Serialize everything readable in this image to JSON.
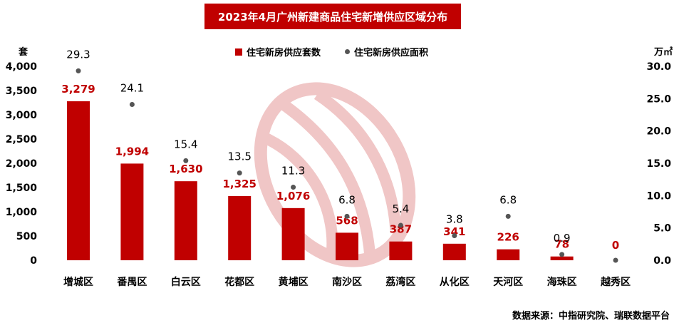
{
  "title": "2023年4月广州新建商品住宅新增供应区域分布",
  "left_unit": "套",
  "right_unit": "万㎡",
  "source": "数据来源：中指研究院、瑞联数据平台",
  "colors": {
    "bar": "#c00000",
    "dot": "#555555",
    "label_red": "#c00000"
  },
  "chart_data": {
    "type": "bar",
    "categories": [
      "增城区",
      "番禺区",
      "白云区",
      "花都区",
      "黄埔区",
      "南沙区",
      "荔湾区",
      "从化区",
      "天河区",
      "海珠区",
      "越秀区"
    ],
    "series": [
      {
        "name": "住宅新房供应套数",
        "type": "bar",
        "axis": "left",
        "values": [
          3279,
          1994,
          1630,
          1325,
          1076,
          568,
          387,
          341,
          226,
          78,
          0
        ],
        "labels": [
          "3,279",
          "1,994",
          "1,630",
          "1,325",
          "1,076",
          "568",
          "387",
          "341",
          "226",
          "78",
          "0"
        ]
      },
      {
        "name": "住宅新房供应面积",
        "type": "scatter",
        "axis": "right",
        "values": [
          29.3,
          24.1,
          15.4,
          13.5,
          11.3,
          6.8,
          5.4,
          3.8,
          6.8,
          0.9,
          0
        ],
        "labels": [
          "29.3",
          "24.1",
          "15.4",
          "13.5",
          "11.3",
          "6.8",
          "5.4",
          "3.8",
          "6.8",
          "0.9",
          ""
        ]
      }
    ],
    "y_left": {
      "ylim": [
        0,
        4000
      ],
      "ticks": [
        "0",
        "500",
        "1,000",
        "1,500",
        "2,000",
        "2,500",
        "3,000",
        "3,500",
        "4,000"
      ]
    },
    "y_right": {
      "ylim": [
        0,
        30
      ],
      "ticks": [
        "0.0",
        "5.0",
        "10.0",
        "15.0",
        "20.0",
        "25.0",
        "30.0"
      ]
    },
    "legend_position": "top-center",
    "grid": false
  }
}
